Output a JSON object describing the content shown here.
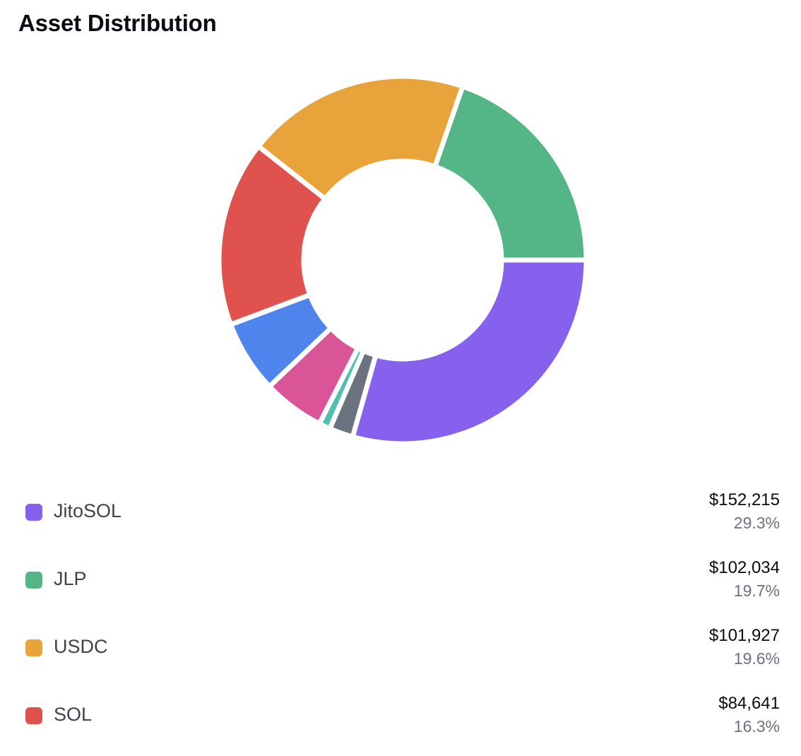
{
  "title": "Asset Distribution",
  "chart_data": {
    "type": "pie",
    "variant": "donut",
    "slices": [
      {
        "name": "JitoSOL",
        "value": 152215,
        "percent": 29.3,
        "color": "#8661EE"
      },
      {
        "name": "",
        "value": 10900,
        "percent": 2.1,
        "color": "#6B7280"
      },
      {
        "name": "",
        "value": 5200,
        "percent": 1.0,
        "color": "#4FBFAE"
      },
      {
        "name": "",
        "value": 28100,
        "percent": 5.4,
        "color": "#D95597"
      },
      {
        "name": "",
        "value": 33000,
        "percent": 6.4,
        "color": "#4E84EC"
      },
      {
        "name": "SOL",
        "value": 84641,
        "percent": 16.3,
        "color": "#DF524D"
      },
      {
        "name": "USDC",
        "value": 101927,
        "percent": 19.6,
        "color": "#E8A33B"
      },
      {
        "name": "JLP",
        "value": 102034,
        "percent": 19.7,
        "color": "#54B586"
      }
    ]
  },
  "legend": [
    {
      "label": "JitoSOL",
      "value": "$152,215",
      "pct": "29.3%",
      "color": "#8661EE"
    },
    {
      "label": "JLP",
      "value": "$102,034",
      "pct": "19.7%",
      "color": "#54B586"
    },
    {
      "label": "USDC",
      "value": "$101,927",
      "pct": "19.6%",
      "color": "#E8A33B"
    },
    {
      "label": "SOL",
      "value": "$84,641",
      "pct": "16.3%",
      "color": "#DF524D"
    }
  ]
}
